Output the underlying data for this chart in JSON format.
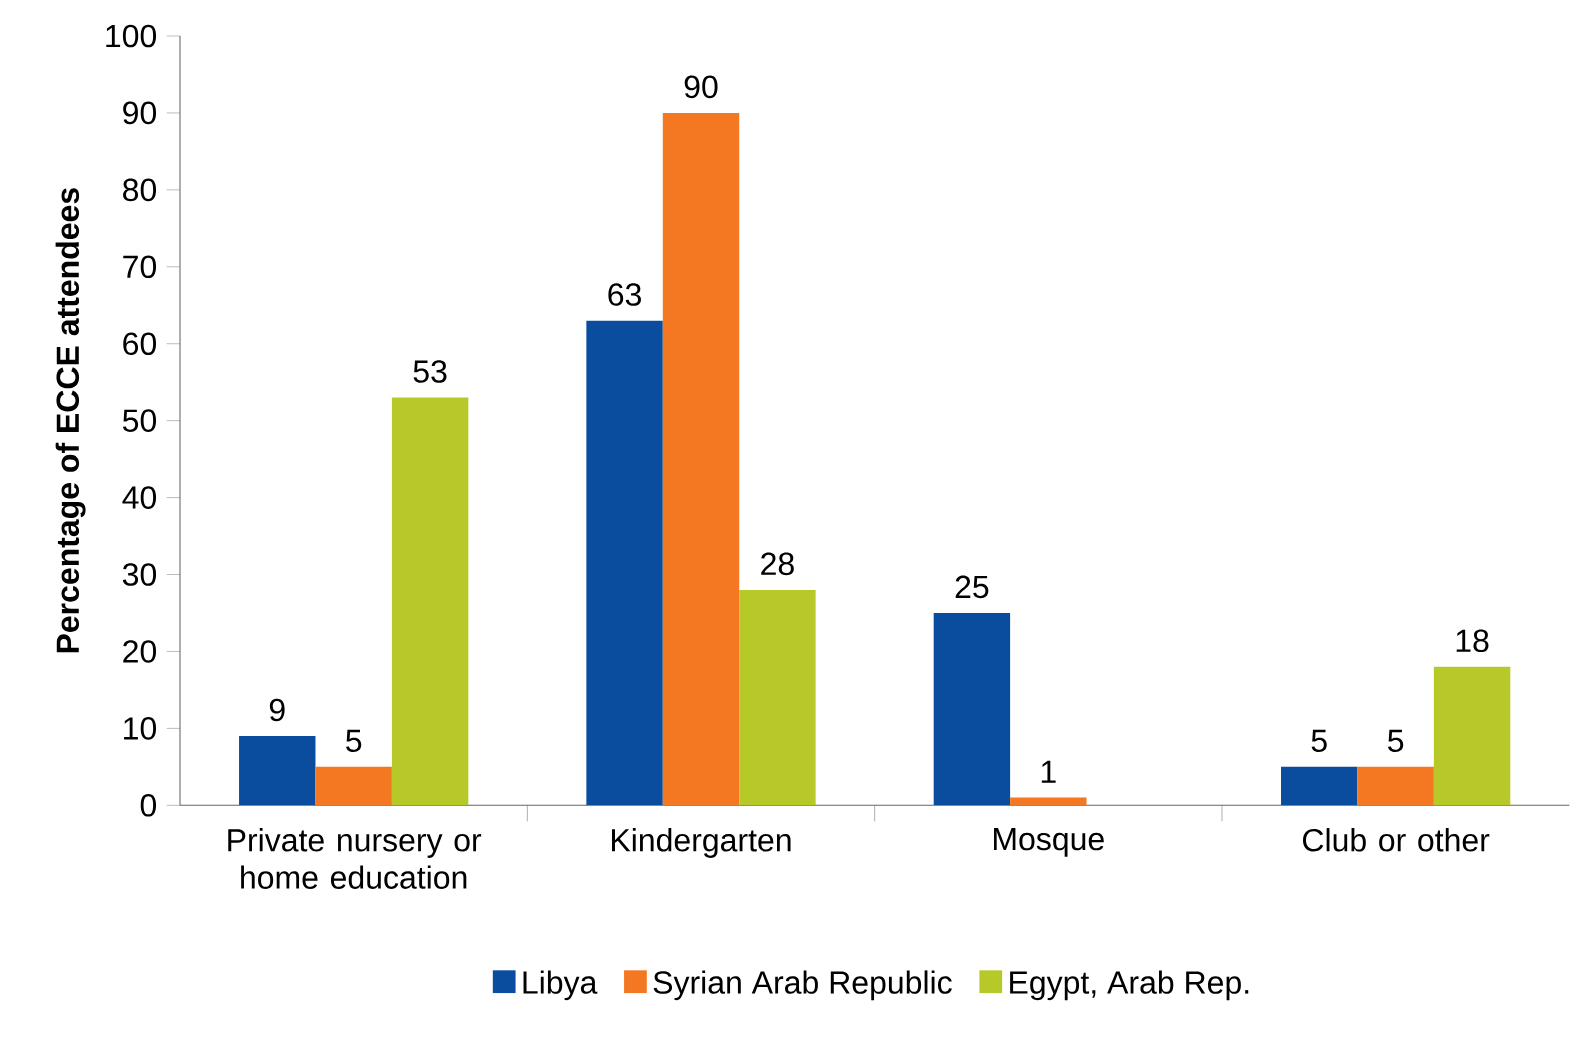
{
  "chart_data": {
    "type": "bar",
    "ylabel": "Percentage of ECCE attendees",
    "categories": [
      "Private nursery or home education",
      "Kindergarten",
      "Mosque",
      "Club or other"
    ],
    "series": [
      {
        "name": "Libya",
        "color": "#0a4d9f",
        "values": [
          9,
          63,
          25,
          5
        ]
      },
      {
        "name": "Syrian Arab Republic",
        "color": "#f47721",
        "values": [
          5,
          90,
          1,
          5
        ]
      },
      {
        "name": "Egypt, Arab Rep.",
        "color": "#b7c928",
        "values": [
          53,
          28,
          null,
          18
        ]
      }
    ],
    "ylim": [
      0,
      100
    ],
    "yticks": [
      0,
      10,
      20,
      30,
      40,
      50,
      60,
      70,
      80,
      90,
      100
    ],
    "data_labels": true,
    "grid": false,
    "legend": "bottom"
  }
}
